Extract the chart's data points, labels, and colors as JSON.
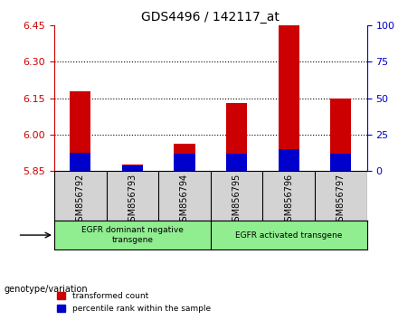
{
  "title": "GDS4496 / 142117_at",
  "samples": [
    "GSM856792",
    "GSM856793",
    "GSM856794",
    "GSM856795",
    "GSM856796",
    "GSM856797"
  ],
  "red_values": [
    6.18,
    5.875,
    5.96,
    6.13,
    6.46,
    6.15
  ],
  "blue_values": [
    5.923,
    5.872,
    5.921,
    5.922,
    5.938,
    5.922
  ],
  "baseline": 5.85,
  "ylim_left": [
    5.85,
    6.45
  ],
  "yticks_left": [
    5.85,
    6.0,
    6.15,
    6.3,
    6.45
  ],
  "yticks_right": [
    0,
    25,
    50,
    75,
    100
  ],
  "ylim_right": [
    0,
    100
  ],
  "groups": [
    {
      "label": "EGFR dominant negative\ntransgene",
      "start": 0,
      "end": 3,
      "color": "#90EE90"
    },
    {
      "label": "EGFR activated transgene",
      "start": 3,
      "end": 6,
      "color": "#90EE90"
    }
  ],
  "bar_width": 0.4,
  "red_color": "#CC0000",
  "blue_color": "#0000CC",
  "grid_color": "#000000",
  "xlabel_color": "#000000",
  "left_axis_color": "#CC0000",
  "right_axis_color": "#0000CC",
  "legend_red": "transformed count",
  "legend_blue": "percentile rank within the sample",
  "genotype_label": "genotype/variation",
  "background_plot": "#FFFFFF",
  "background_sample": "#D3D3D3"
}
